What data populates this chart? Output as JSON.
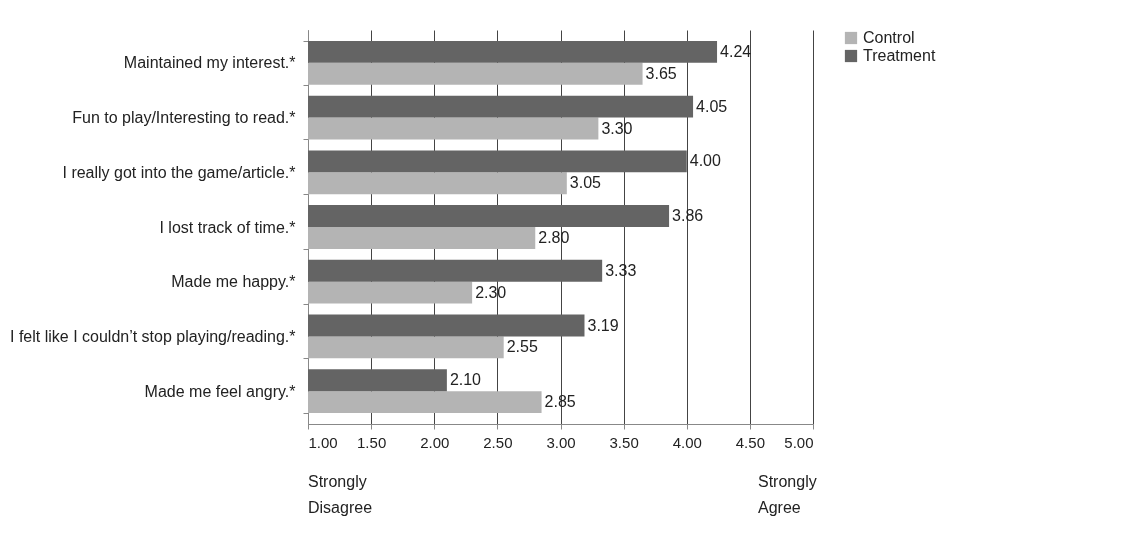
{
  "chart_data": {
    "type": "bar",
    "orientation": "horizontal",
    "categories": [
      "Maintained my interest.*",
      "Fun to play/Interesting to read.*",
      "I really got into the game/article.*",
      "I lost track of time.*",
      "Made me happy.*",
      "I felt like I  couldn’t stop playing/reading.*",
      "Made me feel angry.*"
    ],
    "series": [
      {
        "name": "Control",
        "color": "#b4b4b4",
        "values": [
          3.65,
          3.3,
          3.05,
          2.8,
          2.3,
          2.55,
          2.85
        ],
        "value_labels": [
          "3.65",
          "3.30",
          "3.05",
          "2.80",
          "2.30",
          "2.55",
          "2.85"
        ]
      },
      {
        "name": "Treatment",
        "color": "#646464",
        "values": [
          4.24,
          4.05,
          4.0,
          3.86,
          3.33,
          3.19,
          2.1
        ],
        "value_labels": [
          "4.24",
          "4.05",
          "4.00",
          "3.86",
          "3.33",
          "3.19",
          "2.10"
        ]
      }
    ],
    "xlim": [
      1,
      5
    ],
    "xticks": [
      {
        "value": 1,
        "label": "1.00"
      },
      {
        "value": 1.5,
        "label": "1.50"
      },
      {
        "value": 2,
        "label": "2.00"
      },
      {
        "value": 2.5,
        "label": "2.50"
      },
      {
        "value": 3,
        "label": "3.00"
      },
      {
        "value": 3.5,
        "label": "3.50"
      },
      {
        "value": 4,
        "label": "4.00"
      },
      {
        "value": 4.5,
        "label": "4.50"
      },
      {
        "value": 5,
        "label": "5.00"
      }
    ],
    "grid": "x",
    "legend": "right",
    "annotations": [
      "Strongly\nDisagree",
      "Strongly\nAgree"
    ]
  }
}
